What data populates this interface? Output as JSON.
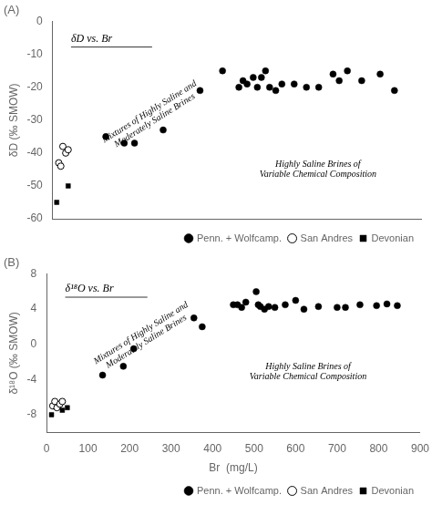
{
  "chart_data": [
    {
      "type": "scatter",
      "title": "(A)",
      "subtitle": "δD vs. Br",
      "y_label": "δD (‰ SMOW)",
      "annotations": [
        "Mixtures of Highly Saline and\nModerately Saline Brines",
        "Highly Saline Brines of\nVariable Chemical Composition"
      ],
      "xlim": [
        0,
        900
      ],
      "xticks": [
        0,
        100,
        200,
        300,
        400,
        500,
        600,
        700,
        800,
        900
      ],
      "ylim": [
        -60,
        0
      ],
      "yticks": [
        0,
        -10,
        -20,
        -30,
        -40,
        -50,
        -60
      ],
      "tick_labels": "y",
      "grid": false,
      "legend": "lower right",
      "series": [
        {
          "name": "Penn. + Wolfcamp.",
          "color": "#000000",
          "marker": "circle",
          "x": [
            130,
            175,
            200,
            270,
            360,
            415,
            455,
            465,
            475,
            490,
            500,
            510,
            520,
            530,
            545,
            560,
            590,
            620,
            650,
            685,
            700,
            720,
            755,
            800,
            835
          ],
          "values": [
            -35,
            -37,
            -37,
            -33,
            -21,
            -15,
            -20,
            -18,
            -19,
            -17,
            -20,
            -17,
            -15,
            -20,
            -21,
            -19,
            -19,
            -20,
            -20,
            -16,
            -18,
            -15,
            -18,
            -16,
            -21
          ]
        },
        {
          "name": "San Andres",
          "color": "#000000",
          "marker": "open_circle",
          "x": [
            15,
            20,
            25,
            32,
            38
          ],
          "values": [
            -43,
            -44,
            -38,
            -40,
            -39
          ]
        },
        {
          "name": "Devonian",
          "color": "#000000",
          "marker": "square",
          "x": [
            10,
            38
          ],
          "values": [
            -55,
            -50
          ]
        }
      ]
    },
    {
      "type": "scatter",
      "title": "(B)",
      "subtitle": "δ¹⁸O vs. Br",
      "y_label": "δ¹⁸O (‰ SMOW)",
      "x_label": "Br  (mg/L)",
      "annotations": [
        "Mixtures of Highly Saline and\nModerately Saline Brines",
        "Highly Saline Brines of\nVariable Chemical Composition"
      ],
      "xlim": [
        0,
        900
      ],
      "xticks": [
        0,
        100,
        200,
        300,
        400,
        500,
        600,
        700,
        800,
        900
      ],
      "ylim": [
        -10,
        8
      ],
      "yticks": [
        -8,
        -4,
        0,
        4,
        8
      ],
      "grid": false,
      "legend": "lower right",
      "series": [
        {
          "name": "Penn. + Wolfcamp.",
          "color": "#000000",
          "marker": "circle",
          "x": [
            135,
            185,
            210,
            355,
            375,
            450,
            460,
            470,
            480,
            505,
            510,
            515,
            525,
            535,
            550,
            575,
            600,
            620,
            655,
            700,
            720,
            755,
            795,
            820,
            845
          ],
          "values": [
            -3.5,
            -2.5,
            -0.5,
            3.0,
            2.0,
            4.5,
            4.5,
            4.2,
            4.8,
            6.0,
            4.5,
            4.3,
            4.0,
            4.3,
            4.2,
            4.5,
            5.0,
            4.0,
            4.3,
            4.2,
            4.2,
            4.5,
            4.4,
            4.6,
            4.4
          ]
        },
        {
          "name": "San Andres",
          "color": "#000000",
          "marker": "open_circle",
          "x": [
            15,
            20,
            25,
            32,
            38
          ],
          "values": [
            -7.0,
            -6.5,
            -7.2,
            -6.8,
            -6.5
          ]
        },
        {
          "name": "Devonian",
          "color": "#000000",
          "marker": "square",
          "x": [
            12,
            38,
            50
          ],
          "values": [
            -8.0,
            -7.5,
            -7.2
          ]
        }
      ]
    }
  ]
}
